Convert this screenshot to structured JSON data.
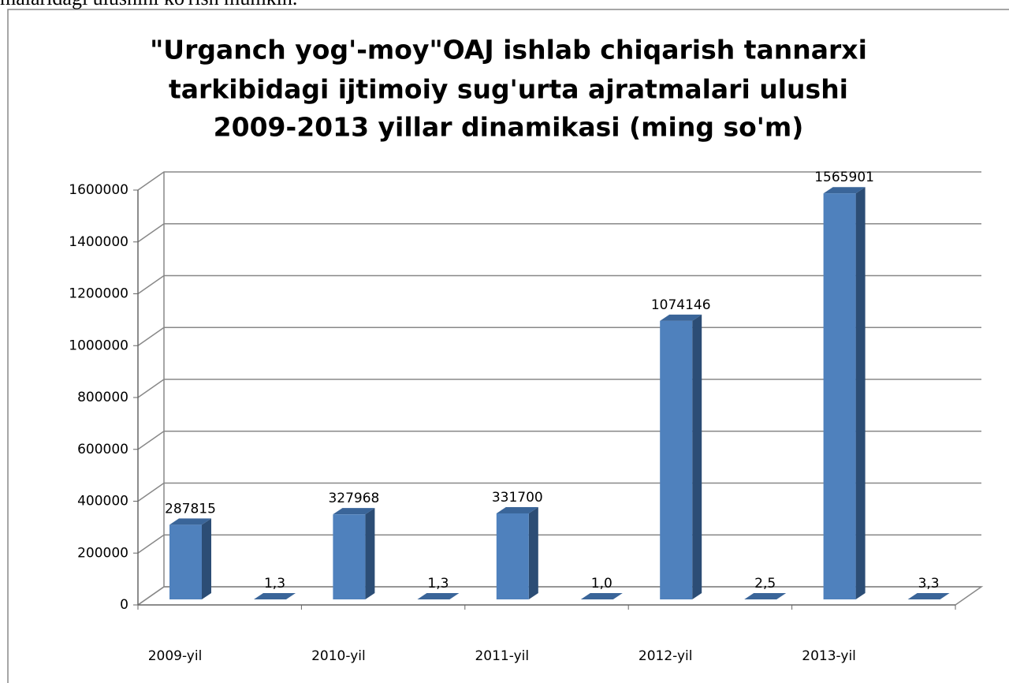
{
  "caption": "malaridagi ulushini ko'rish mumkin.",
  "chart_data": {
    "type": "bar3d",
    "title": [
      "\"Urganch yog'-moy\"OAJ ishlab chiqarish tannarxi",
      "tarkibidagi  ijtimoiy sug'urta ajratmalari  ulushi",
      "2009-2013 yillar dinamikasi (ming so'm)"
    ],
    "categories": [
      "2009-yil",
      "2010-yil",
      "2011-yil",
      "2012-yil",
      "2013-yil"
    ],
    "series": [
      {
        "color": "#4f81bd",
        "values": [
          287815,
          327968,
          331700,
          1074146,
          1565901
        ]
      },
      {
        "color": "#4f81bd",
        "values": [
          1.3,
          1.3,
          1.0,
          2.5,
          3.3
        ],
        "value_labels": [
          "1,3",
          "1,3",
          "1,0",
          "2,5",
          "3,3"
        ]
      }
    ],
    "ylim": [
      0,
      1600000
    ],
    "yticks": [
      0,
      200000,
      400000,
      600000,
      800000,
      1000000,
      1200000,
      1400000,
      1600000
    ],
    "grid": true
  }
}
